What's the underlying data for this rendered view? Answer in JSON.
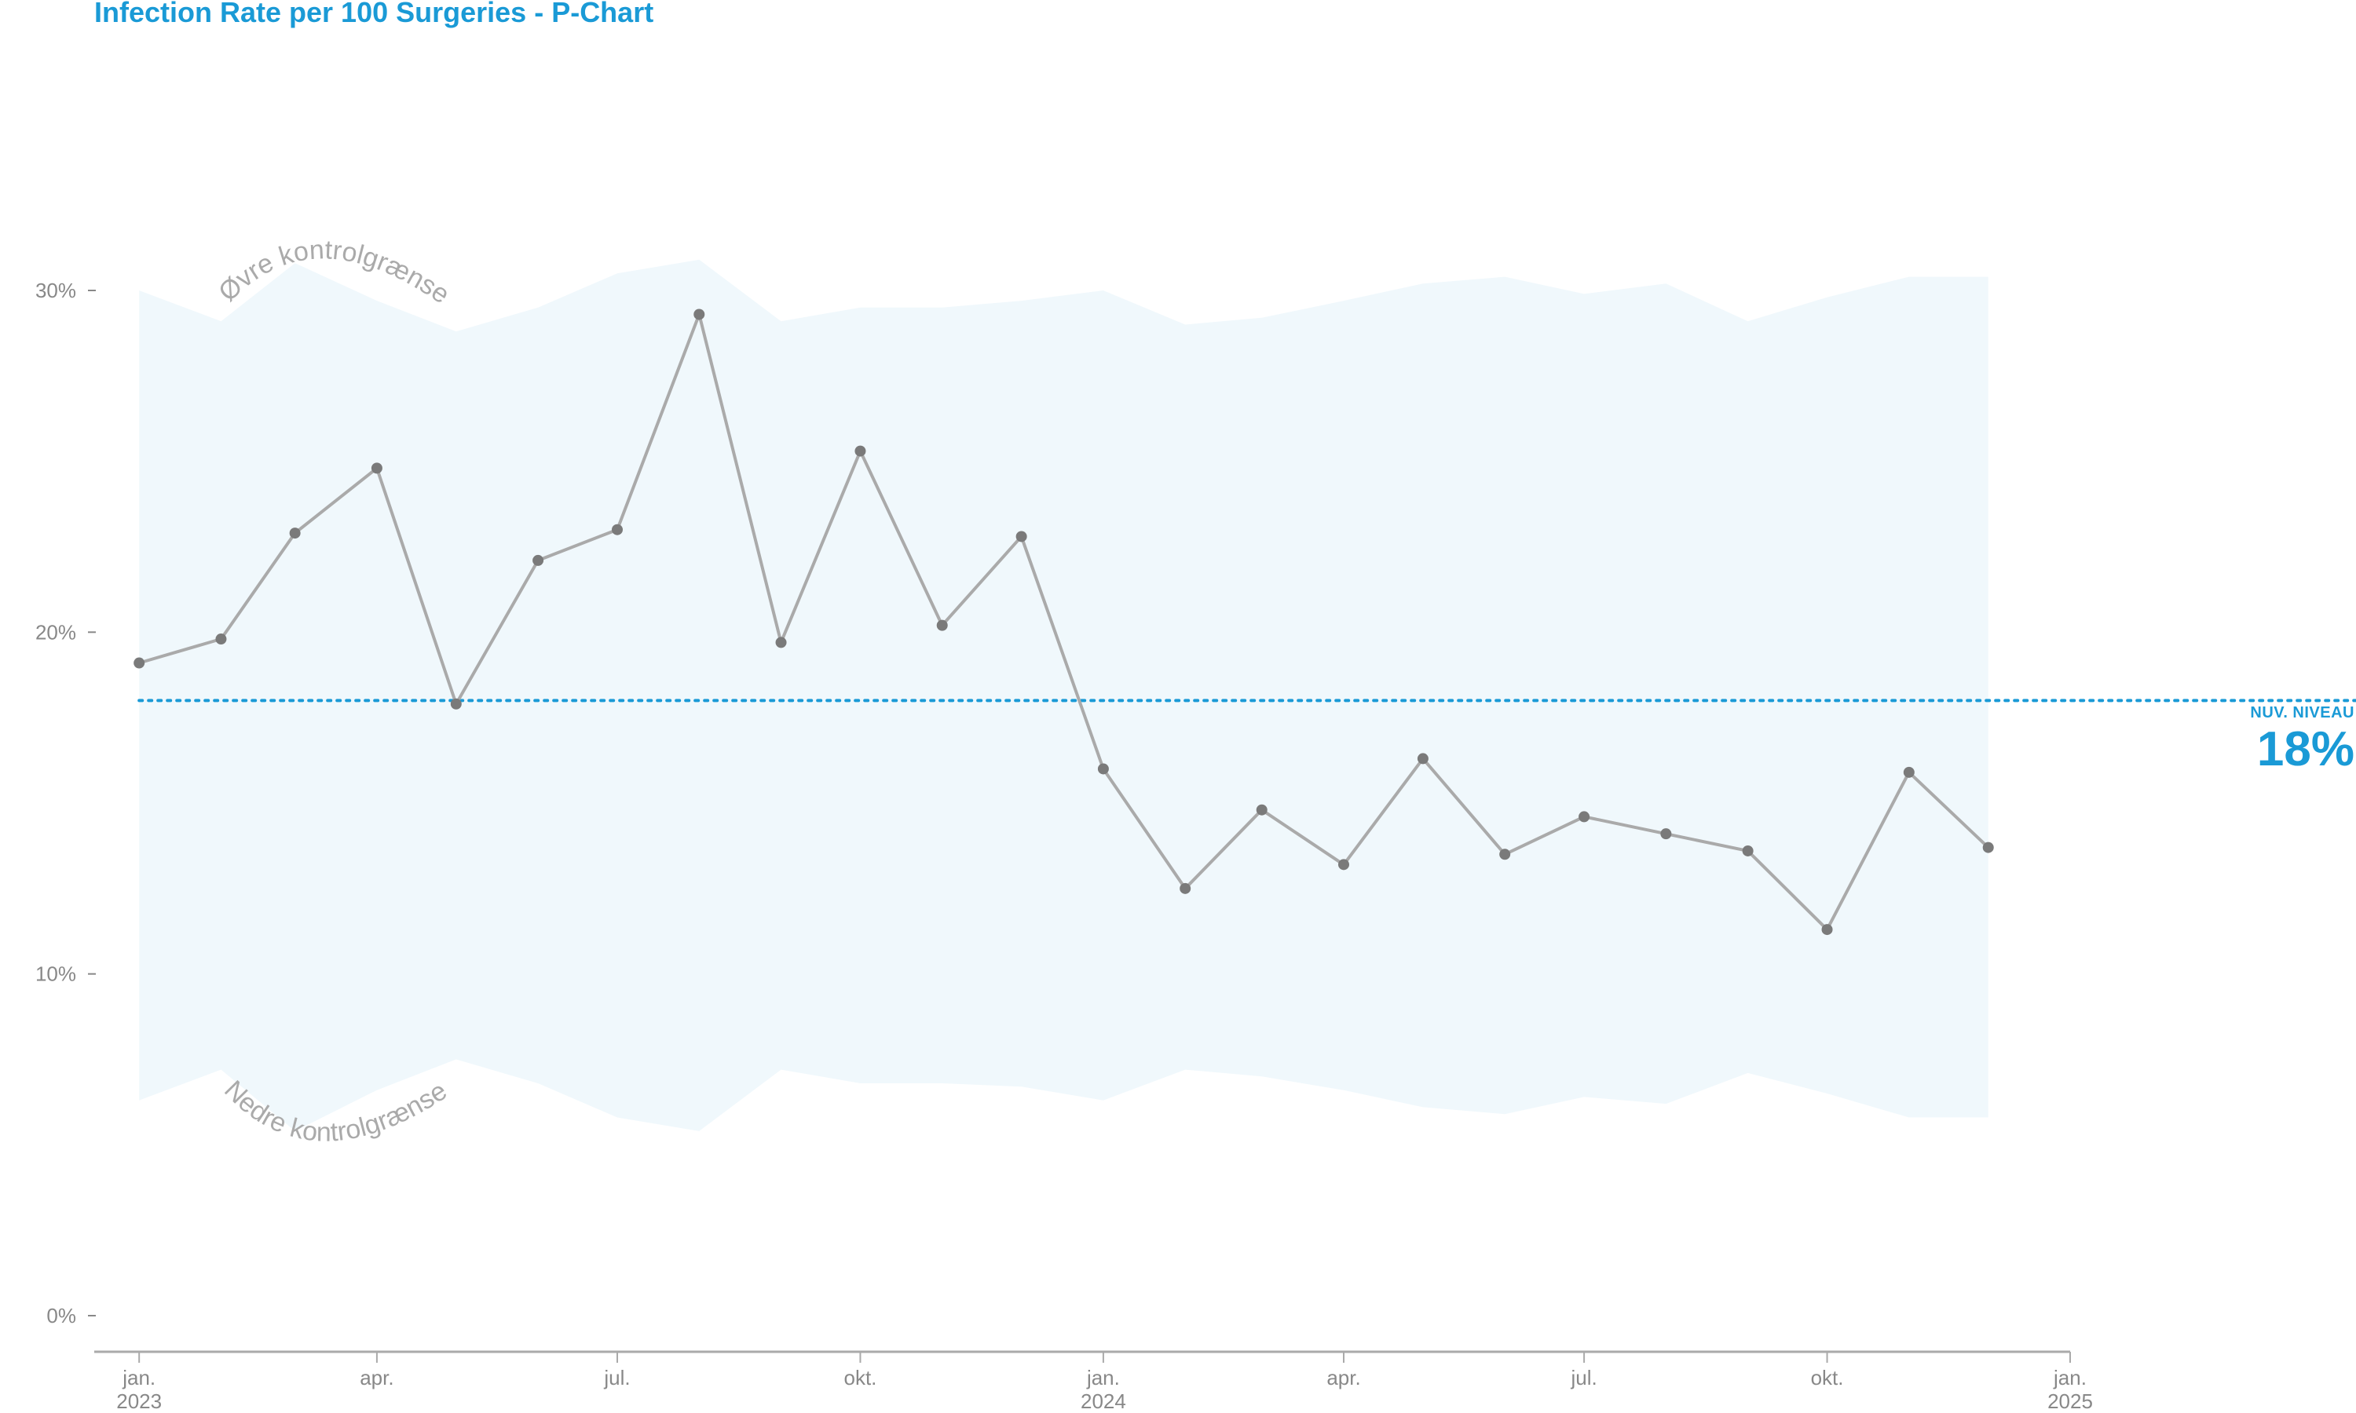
{
  "chart_data": {
    "type": "line",
    "title": "Infection Rate per 100 Surgeries - P-Chart",
    "x_unit": "month",
    "x": [
      "2023-01",
      "2023-02",
      "2023-03",
      "2023-04",
      "2023-05",
      "2023-06",
      "2023-07",
      "2023-08",
      "2023-09",
      "2023-10",
      "2023-11",
      "2023-12",
      "2024-01",
      "2024-02",
      "2024-03",
      "2024-04",
      "2024-05",
      "2024-06",
      "2024-07",
      "2024-08",
      "2024-09",
      "2024-10",
      "2024-11",
      "2024-12"
    ],
    "series": [
      {
        "name": "",
        "values": [
          19.1,
          19.8,
          22.9,
          24.8,
          17.9,
          22.1,
          23.0,
          29.3,
          19.7,
          25.3,
          20.2,
          22.8,
          16.0,
          12.5,
          14.8,
          13.2,
          16.3,
          13.5,
          14.6,
          14.1,
          13.6,
          11.3,
          15.9,
          13.7
        ],
        "color": "#aaaaaa",
        "marker_color": "#7a7a7a"
      }
    ],
    "control_limits": {
      "upper_label": "Øvre kontrolgrænse",
      "lower_label": "Nedre kontrolgrænse",
      "upper": [
        30.0,
        29.1,
        30.8,
        29.7,
        28.8,
        29.5,
        30.5,
        30.9,
        29.1,
        29.5,
        29.5,
        29.7,
        30.0,
        29.0,
        29.2,
        29.7,
        30.2,
        30.4,
        29.9,
        30.2,
        29.1,
        29.8,
        30.4,
        30.4
      ],
      "lower": [
        6.3,
        7.2,
        5.4,
        6.6,
        7.5,
        6.8,
        5.8,
        5.4,
        7.2,
        6.8,
        6.8,
        6.7,
        6.3,
        7.2,
        7.0,
        6.6,
        6.1,
        5.9,
        6.4,
        6.2,
        7.1,
        6.5,
        5.8,
        5.8
      ],
      "band_color": "#f0f8fc"
    },
    "center_line": {
      "value": 18.0,
      "label": "NUV. NIVEAU",
      "display": "18%",
      "color": "#1a9ad6",
      "style": "dotted"
    },
    "y_axis": {
      "ylim": [
        0,
        35
      ],
      "ticks": [
        0,
        10,
        20,
        30
      ],
      "tick_labels": [
        "0%",
        "10%",
        "20%",
        "30%"
      ]
    },
    "x_axis": {
      "xlim": [
        "2022-12-15",
        "2025-01-01"
      ],
      "ticks": [
        "2023-01-01",
        "2023-04-01",
        "2023-07-01",
        "2023-10-01",
        "2024-01-01",
        "2024-04-01",
        "2024-07-01",
        "2024-10-01",
        "2025-01-01"
      ],
      "tick_labels": [
        "jan.\n2023",
        "apr.",
        "jul.",
        "okt.",
        "jan.\n2024",
        "apr.",
        "jul.",
        "okt.",
        "jan.\n2025"
      ]
    },
    "grid": false,
    "legend": "none"
  }
}
